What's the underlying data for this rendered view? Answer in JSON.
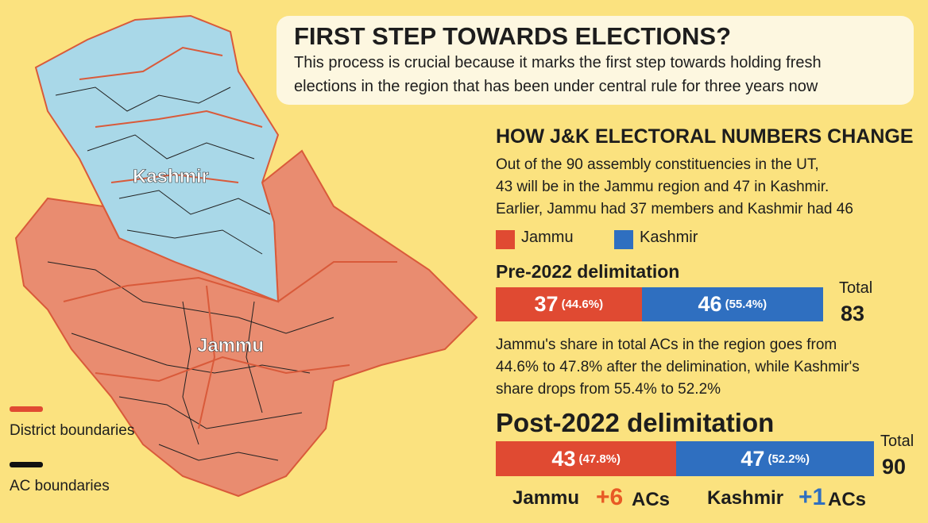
{
  "header": {
    "title": "FIRST STEP TOWARDS ELECTIONS?",
    "lines": [
      "This process is crucial because it marks the first step towards holding fresh",
      "elections in the region that has been under central rule for three years now"
    ]
  },
  "map": {
    "labels": [
      "Kashmir",
      "Jammu"
    ],
    "legend": [
      "District boundaries",
      "AC boundaries"
    ]
  },
  "section": {
    "title": "HOW J&K ELECTORAL NUMBERS CHANGE",
    "lines": [
      "Out of the 90 assembly constituencies in the UT,",
      "43 will be in the Jammu region and 47 in Kashmir.",
      "Earlier, Jammu had 37 members and Kashmir had 46"
    ]
  },
  "legend": [
    {
      "name": "Jammu",
      "color": "#e04a32"
    },
    {
      "name": "Kashmir",
      "color": "#2f6fc0"
    }
  ],
  "pre": {
    "title": "Pre-2022 delimitation",
    "values": [
      37,
      46
    ],
    "shares": [
      "(44.6%)",
      "(55.4%)"
    ],
    "total_label": "Total",
    "total": 83
  },
  "note": {
    "lines": [
      "Jammu's share in total ACs in the region goes from",
      "44.6% to 47.8% after the delimination, while Kashmir's",
      "share drops from 55.4% to 52.2%"
    ]
  },
  "post": {
    "title": "Post-2022 delimitation",
    "values": [
      43,
      47
    ],
    "shares": [
      "(47.8%)",
      "(52.2%)"
    ],
    "total_label": "Total",
    "total": 90,
    "changes": [
      {
        "name": "Jammu",
        "delta": "+6",
        "unit": "ACs"
      },
      {
        "name": "Kashmir",
        "delta": "+1",
        "unit": "ACs"
      }
    ]
  }
}
